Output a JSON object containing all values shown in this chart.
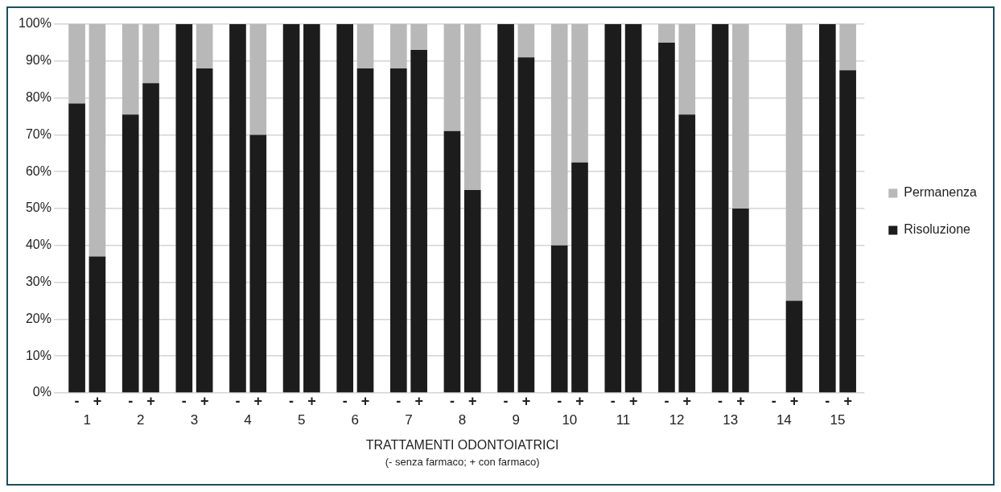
{
  "chart_data": {
    "type": "bar",
    "stacked": true,
    "xlabel": "TRATTAMENTI ODONTOIATRICI\n(- senza farmaco; + con farmaco)",
    "categories": [
      "-",
      "+",
      "-",
      "+",
      "-",
      "+",
      "-",
      "+",
      "-",
      "+",
      "-",
      "+",
      "-",
      "+",
      "-",
      "+",
      "-",
      "+",
      "-",
      "+",
      "-",
      "+",
      "-",
      "+",
      "-",
      "+",
      "-",
      "+",
      "-",
      "+"
    ],
    "series": [
      {
        "name": "Risoluzione",
        "color": "#1c1c1c",
        "values": [
          78.5,
          37,
          75.5,
          84,
          100,
          88,
          100,
          70,
          100,
          100,
          100,
          88,
          88,
          93,
          71,
          55,
          100,
          91,
          40,
          62.5,
          100,
          100,
          95,
          75.5,
          100,
          50,
          0,
          25,
          100,
          87.5
        ]
      },
      {
        "name": "Permanenza",
        "color": "#b8b8b8",
        "values": [
          21.5,
          63,
          24.5,
          16,
          0,
          12,
          0,
          30,
          0,
          0,
          0,
          12,
          12,
          7,
          29,
          45,
          0,
          9,
          60,
          37.5,
          0,
          0,
          5,
          24.5,
          0,
          50,
          0,
          75,
          0,
          12.5
        ]
      }
    ],
    "ylim": [
      0,
      100
    ],
    "yticks": [
      {
        "value": 0,
        "label": "0%"
      },
      {
        "value": 10,
        "label": "10%"
      },
      {
        "value": 20,
        "label": "20%"
      },
      {
        "value": 30,
        "label": "30%"
      },
      {
        "value": 40,
        "label": "40%"
      },
      {
        "value": 50,
        "label": "50%"
      },
      {
        "value": 60,
        "label": "60%"
      },
      {
        "value": 70,
        "label": "70%"
      },
      {
        "value": 80,
        "label": "80%"
      },
      {
        "value": 90,
        "label": "90%"
      },
      {
        "value": 100,
        "label": "100%"
      }
    ],
    "grid": "y",
    "legend": "right",
    "annotations": [
      "1",
      "2",
      "3",
      "4",
      "5",
      "6",
      "7",
      "8",
      "9",
      "10",
      "11",
      "12",
      "13",
      "14",
      "15"
    ]
  }
}
